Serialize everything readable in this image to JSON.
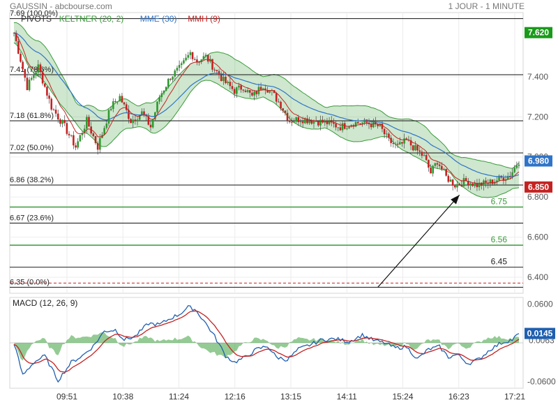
{
  "header": {
    "title": "GAUSSIN - abcbourse.com",
    "timeframe": "1 JOUR - 1 MINUTE"
  },
  "legend": [
    {
      "label": "PIVOTS",
      "color": "#333333"
    },
    {
      "label": "KELTNER (20, 2)",
      "color": "#3a9a3a"
    },
    {
      "label": "MME (30)",
      "color": "#2f74c8"
    },
    {
      "label": "MMH (9)",
      "color": "#c42222"
    }
  ],
  "chart_data": [
    {
      "type": "candlestick",
      "title": "GAUSSIN - abcbourse.com",
      "x_ticks": [
        "09:51",
        "10:38",
        "11:24",
        "12:16",
        "13:15",
        "14:11",
        "15:24",
        "16:23",
        "17:21"
      ],
      "y_ticks": [
        "6.400",
        "6.600",
        "6.800",
        "7.000",
        "7.200",
        "7.400"
      ],
      "ylim": [
        6.32,
        7.72
      ],
      "series_anchor": [
        [
          0,
          7.62
        ],
        [
          6,
          7.35
        ],
        [
          11,
          7.45
        ],
        [
          17,
          7.25
        ],
        [
          23,
          7.15
        ],
        [
          28,
          7.05
        ],
        [
          33,
          7.18
        ],
        [
          38,
          7.05
        ],
        [
          44,
          7.25
        ],
        [
          48,
          7.3
        ],
        [
          53,
          7.18
        ],
        [
          58,
          7.22
        ],
        [
          62,
          7.15
        ],
        [
          66,
          7.3
        ],
        [
          71,
          7.4
        ],
        [
          76,
          7.45
        ],
        [
          80,
          7.52
        ],
        [
          83,
          7.48
        ],
        [
          87,
          7.5
        ],
        [
          91,
          7.44
        ],
        [
          95,
          7.38
        ],
        [
          100,
          7.33
        ],
        [
          104,
          7.35
        ],
        [
          108,
          7.3
        ],
        [
          113,
          7.36
        ],
        [
          117,
          7.32
        ],
        [
          121,
          7.26
        ],
        [
          125,
          7.18
        ],
        [
          130,
          7.19
        ],
        [
          136,
          7.18
        ],
        [
          142,
          7.17
        ],
        [
          148,
          7.15
        ],
        [
          154,
          7.17
        ],
        [
          160,
          7.17
        ],
        [
          166,
          7.15
        ],
        [
          170,
          7.08
        ],
        [
          174,
          7.05
        ],
        [
          178,
          7.08
        ],
        [
          182,
          7.04
        ],
        [
          186,
          7.0
        ],
        [
          189,
          6.92
        ],
        [
          192,
          6.98
        ],
        [
          196,
          6.9
        ],
        [
          200,
          6.86
        ],
        [
          205,
          6.88
        ],
        [
          210,
          6.86
        ],
        [
          215,
          6.87
        ],
        [
          220,
          6.89
        ],
        [
          225,
          6.91
        ],
        [
          229,
          6.98
        ]
      ],
      "pivot_levels": [
        {
          "value": 7.69,
          "label": "7.69 (100.0%)"
        },
        {
          "value": 7.41,
          "label": "7.41 (78.6%)"
        },
        {
          "value": 7.18,
          "label": "7.18 (61.8%)"
        },
        {
          "value": 7.02,
          "label": "7.02 (50.0%)"
        },
        {
          "value": 6.86,
          "label": "6.86 (38.2%)"
        },
        {
          "value": 6.67,
          "label": "6.67 (23.6%)"
        },
        {
          "value": 6.35,
          "label": "6.35 (0.0%)"
        }
      ],
      "support_levels": [
        {
          "value": 6.75,
          "label": "6.75",
          "color": "#3a9a3a"
        },
        {
          "value": 6.56,
          "label": "6.56",
          "color": "#3a9a3a"
        },
        {
          "value": 6.45,
          "label": "6.45",
          "color": "#222222"
        }
      ],
      "last_price": {
        "value": 7.62,
        "label": "7.620",
        "color": "#1a9a1a"
      },
      "price_tags": [
        {
          "value": 6.98,
          "label": "6.980",
          "color": "#2f74c8"
        },
        {
          "value": 6.85,
          "label": "6.850",
          "color": "#c42222"
        }
      ],
      "arrow": {
        "from": [
          165,
          6.35
        ],
        "to": [
          202,
          6.81
        ]
      }
    },
    {
      "type": "line",
      "title": "MACD (12, 26, 9)",
      "y_ticks": [
        "0.0600",
        "-0.0600"
      ],
      "ylim": [
        -0.07,
        0.07
      ],
      "last_value": {
        "value": 0.0145,
        "label": "0.0145",
        "color": "#1f5fb0"
      },
      "hidden_value_label": "0.0063",
      "macd_anchor": [
        [
          0,
          0.0
        ],
        [
          4,
          -0.05
        ],
        [
          9,
          -0.03
        ],
        [
          14,
          -0.02
        ],
        [
          20,
          -0.058
        ],
        [
          26,
          -0.03
        ],
        [
          31,
          -0.02
        ],
        [
          36,
          -0.005
        ],
        [
          41,
          0.018
        ],
        [
          46,
          0.02
        ],
        [
          50,
          0.005
        ],
        [
          55,
          0.01
        ],
        [
          61,
          0.03
        ],
        [
          66,
          0.028
        ],
        [
          71,
          0.038
        ],
        [
          75,
          0.044
        ],
        [
          79,
          0.055
        ],
        [
          82,
          0.052
        ],
        [
          86,
          0.035
        ],
        [
          91,
          0.01
        ],
        [
          96,
          -0.02
        ],
        [
          100,
          -0.03
        ],
        [
          105,
          -0.022
        ],
        [
          110,
          -0.01
        ],
        [
          115,
          -0.005
        ],
        [
          119,
          -0.022
        ],
        [
          124,
          -0.026
        ],
        [
          129,
          -0.01
        ],
        [
          135,
          -0.002
        ],
        [
          140,
          0.005
        ],
        [
          146,
          0.006
        ],
        [
          152,
          0.002
        ],
        [
          158,
          0.012
        ],
        [
          163,
          0.004
        ],
        [
          168,
          0.0
        ],
        [
          173,
          -0.008
        ],
        [
          178,
          -0.006
        ],
        [
          183,
          -0.025
        ],
        [
          188,
          -0.01
        ],
        [
          193,
          -0.006
        ],
        [
          197,
          -0.022
        ],
        [
          201,
          -0.018
        ],
        [
          206,
          -0.032
        ],
        [
          211,
          -0.025
        ],
        [
          216,
          -0.01
        ],
        [
          221,
          0.0
        ],
        [
          226,
          0.005
        ],
        [
          229,
          0.014
        ]
      ]
    }
  ]
}
